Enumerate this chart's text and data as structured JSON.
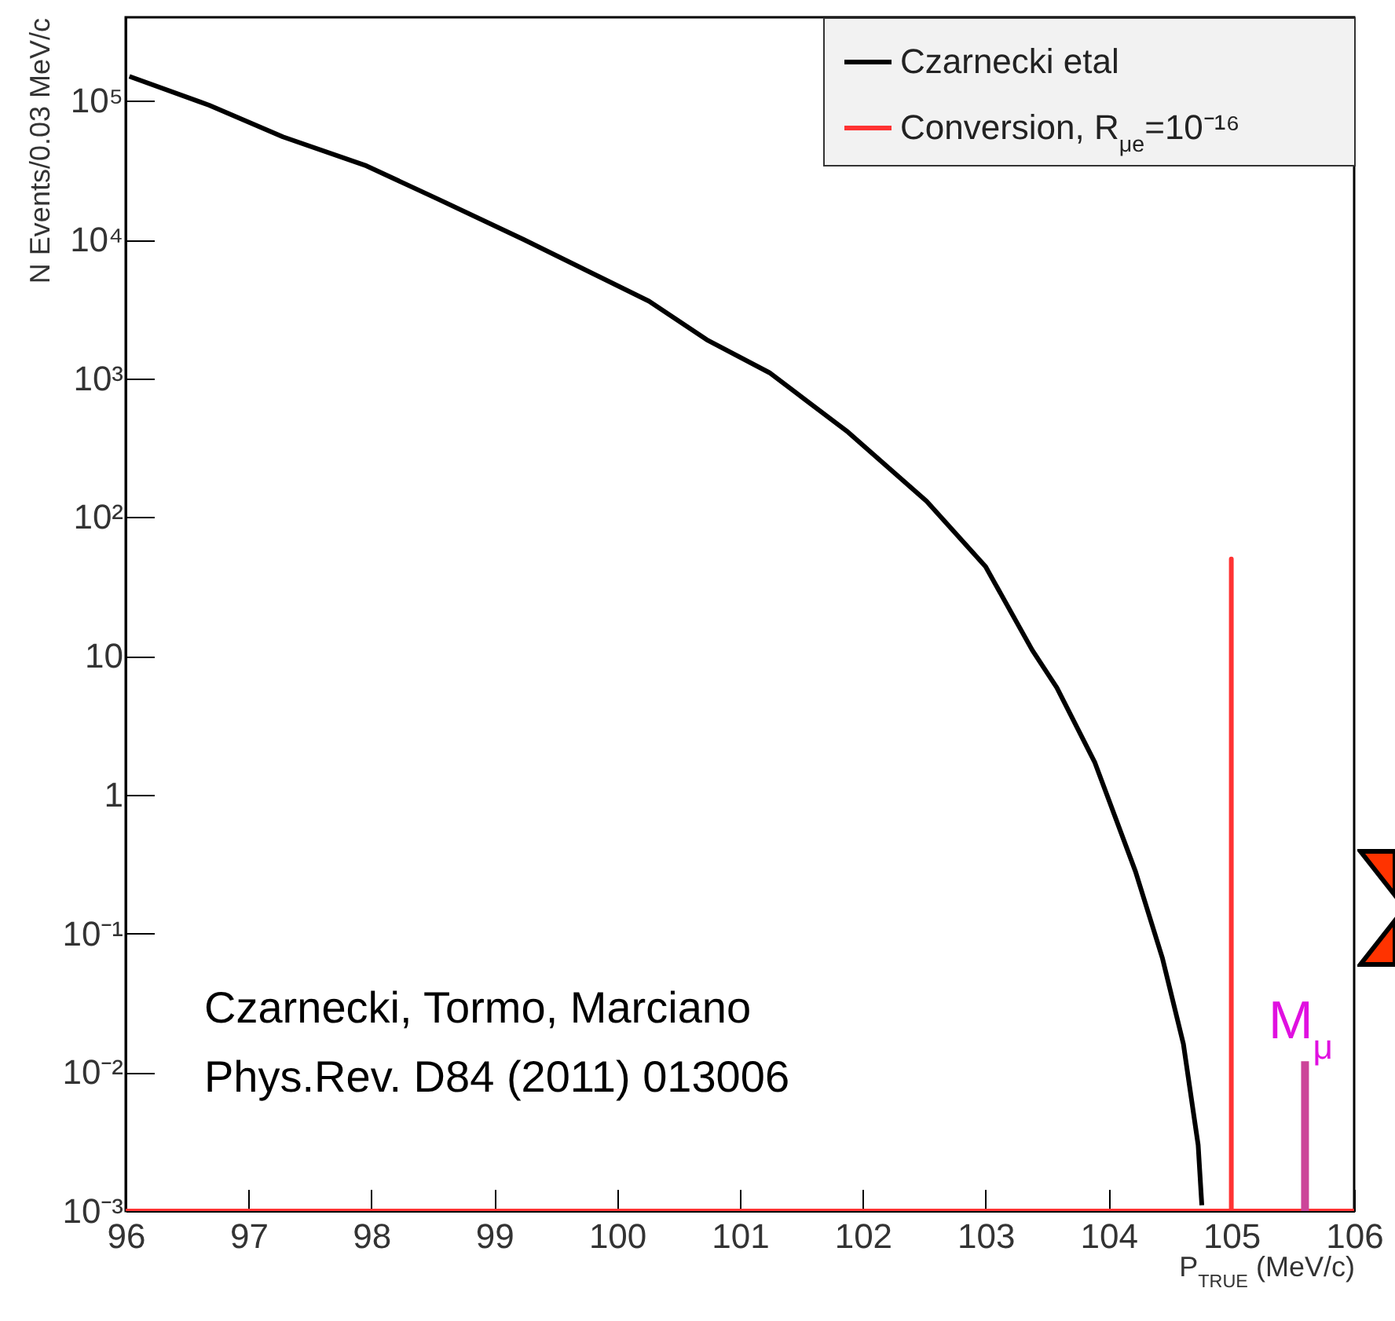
{
  "chart_data": {
    "type": "line",
    "xlabel": "P$_{TRUE}$ (MeV/c)",
    "ylabel": "N Events/0.03 MeV/c",
    "log": "y",
    "xlim": [
      96,
      106
    ],
    "xticks": [
      96,
      97,
      98,
      99,
      100,
      101,
      102,
      103,
      104,
      105,
      106
    ],
    "ylim": [
      0.001,
      400000
    ],
    "yticks": [
      {
        "value": 0.001,
        "label": "10⁻³"
      },
      {
        "value": 0.01,
        "label": "10⁻²"
      },
      {
        "value": 0.1,
        "label": "10⁻¹"
      },
      1,
      10,
      {
        "value": 100,
        "label": "10²"
      },
      {
        "value": 1000,
        "label": "10³"
      },
      {
        "value": 10000,
        "label": "10⁴"
      },
      {
        "value": 100000,
        "label": "10⁵"
      }
    ],
    "grid": false,
    "legend": "top right",
    "series": [
      {
        "name": "Czarnecki etal",
        "color": "#000000",
        "x": [
          96.03,
          96.68,
          97.28,
          97.96,
          98.52,
          99.24,
          100.26,
          100.73,
          101.24,
          101.88,
          102.52,
          103.0,
          103.38,
          103.58,
          103.89,
          104.22,
          104.44,
          104.61,
          104.73,
          104.76
        ],
        "values": [
          150000,
          93000,
          55000,
          34000,
          20000,
          10000,
          3600,
          1900,
          1100,
          410,
          130,
          44,
          11,
          5.9,
          1.7,
          0.28,
          0.066,
          0.016,
          0.003,
          0.0011
        ]
      },
      {
        "name": "Conversion, R$_{μe}$=10⁻¹⁶",
        "color": "#ff3333",
        "x": [
          96,
          105,
          105,
          105,
          106
        ],
        "values": [
          0.001,
          0.001,
          50,
          0.001,
          0.001
        ]
      },
      {
        "color": "#cc4499",
        "x": [
          105.6,
          105.6
        ],
        "values": [
          0.001,
          0.012
        ]
      }
    ],
    "annotations": [
      "Czarnecki, Tormo, Marciano",
      "Phys.Rev. D84 (2011) 013006",
      "M$_{μ}$"
    ]
  }
}
